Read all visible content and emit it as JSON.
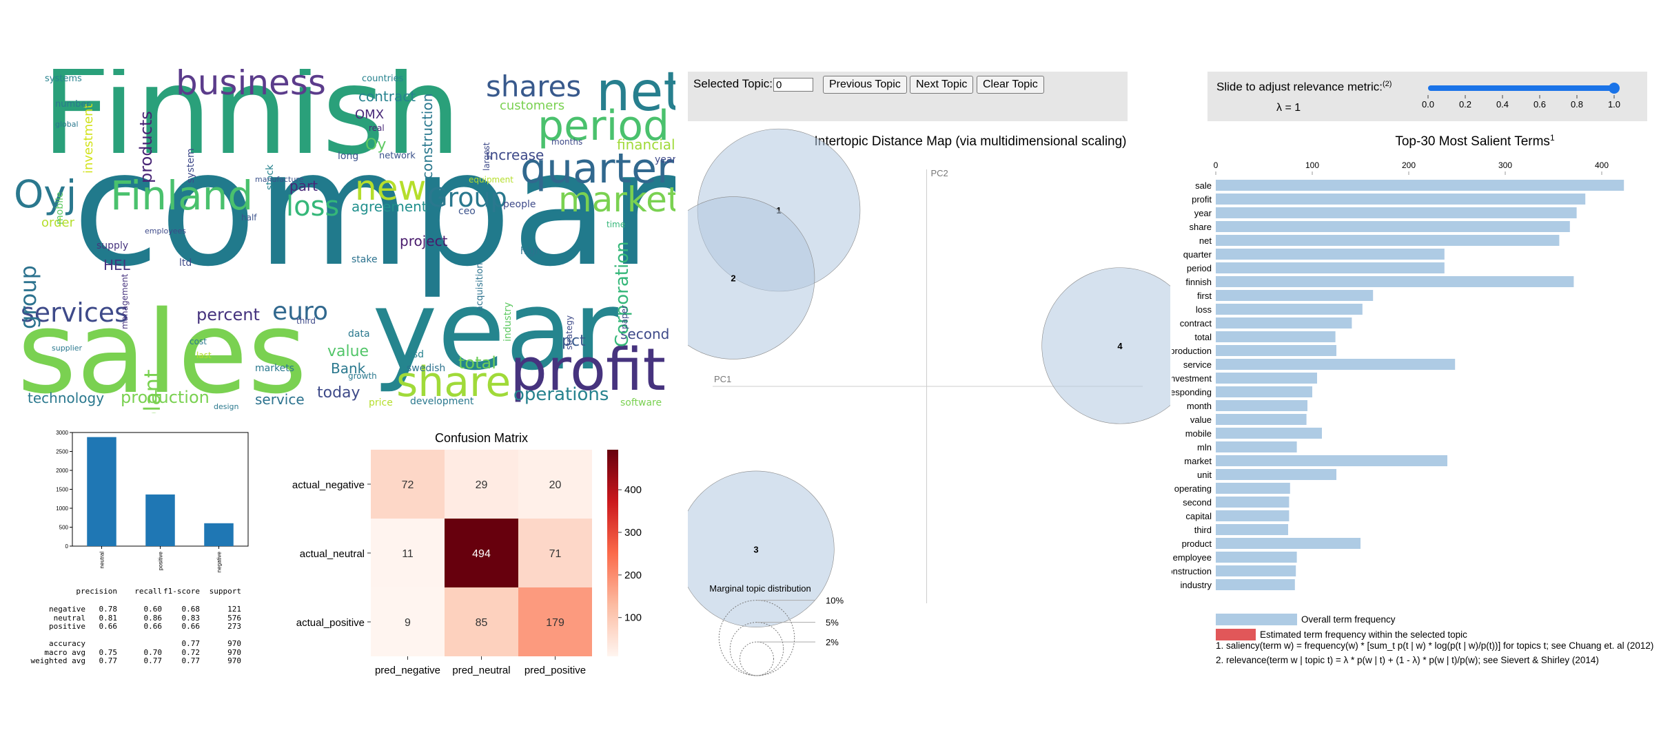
{
  "wordcloud": {
    "words": [
      {
        "text": "company",
        "x": 85,
        "y": 90,
        "size": 230,
        "color": "#217a8c",
        "rot": 0
      },
      {
        "text": "Finnish",
        "x": 40,
        "y": -25,
        "size": 175,
        "color": "#2aa07a",
        "rot": 0
      },
      {
        "text": "sales",
        "x": 5,
        "y": 330,
        "size": 165,
        "color": "#7ad151",
        "rot": 0
      },
      {
        "text": "year",
        "x": 520,
        "y": 300,
        "size": 160,
        "color": "#25858e",
        "rot": 0
      },
      {
        "text": "profit",
        "x": 720,
        "y": 395,
        "size": 85,
        "color": "#46337e",
        "rot": 0
      },
      {
        "text": "net",
        "x": 845,
        "y": -5,
        "size": 78,
        "color": "#277f8e",
        "rot": 0
      },
      {
        "text": "period",
        "x": 760,
        "y": 53,
        "size": 60,
        "color": "#4ac16d",
        "rot": 0
      },
      {
        "text": "quarter",
        "x": 735,
        "y": 115,
        "size": 60,
        "color": "#31688e",
        "rot": 0
      },
      {
        "text": "market",
        "x": 790,
        "y": 165,
        "size": 50,
        "color": "#7ad151",
        "rot": 0
      },
      {
        "text": "business",
        "x": 235,
        "y": -5,
        "size": 50,
        "color": "#5b3c8b",
        "rot": 0
      },
      {
        "text": "shares",
        "x": 685,
        "y": 5,
        "size": 42,
        "color": "#38598c",
        "rot": 0
      },
      {
        "text": "Finland",
        "x": 140,
        "y": 155,
        "size": 58,
        "color": "#4ac16d",
        "rot": 0
      },
      {
        "text": "Oyj",
        "x": 0,
        "y": 155,
        "size": 55,
        "color": "#2a788e",
        "rot": 0
      },
      {
        "text": "new",
        "x": 495,
        "y": 148,
        "size": 50,
        "color": "#b5de2b",
        "rot": 0
      },
      {
        "text": "Group",
        "x": 600,
        "y": 168,
        "size": 38,
        "color": "#2a788e",
        "rot": 0
      },
      {
        "text": "loss",
        "x": 395,
        "y": 180,
        "size": 40,
        "color": "#35b779",
        "rot": 0
      },
      {
        "text": "share",
        "x": 555,
        "y": 425,
        "size": 60,
        "color": "#a0da39",
        "rot": 0
      },
      {
        "text": "services",
        "x": 10,
        "y": 335,
        "size": 38,
        "color": "#3e4a89",
        "rot": 0
      },
      {
        "text": "euro",
        "x": 375,
        "y": 335,
        "size": 36,
        "color": "#31688e",
        "rot": 0
      },
      {
        "text": "percent",
        "x": 265,
        "y": 345,
        "size": 24,
        "color": "#46337e",
        "rot": 0
      },
      {
        "text": "production",
        "x": 155,
        "y": 465,
        "size": 24,
        "color": "#7ad151",
        "rot": 0
      },
      {
        "text": "technology",
        "x": 20,
        "y": 468,
        "size": 20,
        "color": "#2a788e",
        "rot": 0
      },
      {
        "text": "operations",
        "x": 725,
        "y": 460,
        "size": 26,
        "color": "#26828e",
        "rot": 0
      },
      {
        "text": "today",
        "x": 440,
        "y": 460,
        "size": 22,
        "color": "#3e4a89",
        "rot": 0
      },
      {
        "text": "service",
        "x": 350,
        "y": 470,
        "size": 20,
        "color": "#2c728e",
        "rot": 0
      },
      {
        "text": "total",
        "x": 645,
        "y": 415,
        "size": 24,
        "color": "#6ece58",
        "rot": 0
      },
      {
        "text": "value",
        "x": 455,
        "y": 400,
        "size": 22,
        "color": "#52c569",
        "rot": 0
      },
      {
        "text": "Bank",
        "x": 460,
        "y": 425,
        "size": 20,
        "color": "#2a788e",
        "rot": 0
      },
      {
        "text": "second",
        "x": 880,
        "y": 375,
        "size": 20,
        "color": "#3e4a89",
        "rot": 0
      },
      {
        "text": "pct",
        "x": 795,
        "y": 385,
        "size": 22,
        "color": "#38598c",
        "rot": 0
      },
      {
        "text": "agreement",
        "x": 490,
        "y": 190,
        "size": 20,
        "color": "#21908d",
        "rot": 0
      },
      {
        "text": "contract",
        "x": 500,
        "y": 30,
        "size": 20,
        "color": "#26828e",
        "rot": 0
      },
      {
        "text": "increase",
        "x": 685,
        "y": 115,
        "size": 20,
        "color": "#3e4a89",
        "rot": 0
      },
      {
        "text": "financial",
        "x": 875,
        "y": 100,
        "size": 20,
        "color": "#a0da39",
        "rot": 0
      },
      {
        "text": "customers",
        "x": 705,
        "y": 45,
        "size": 18,
        "color": "#7ad151",
        "rot": 0
      },
      {
        "text": "part",
        "x": 400,
        "y": 160,
        "size": 20,
        "color": "#482878",
        "rot": 0
      },
      {
        "text": "project",
        "x": 560,
        "y": 240,
        "size": 20,
        "color": "#481a6c",
        "rot": 0
      },
      {
        "text": "group",
        "x": 5,
        "y": 250,
        "size": 32,
        "color": "#2c728e",
        "rot": -90
      },
      {
        "text": "solutions",
        "x": -40,
        "y": 260,
        "size": 18,
        "color": "#3b528b",
        "rot": -90
      },
      {
        "text": "Corporation",
        "x": 870,
        "y": 300,
        "size": 26,
        "color": "#35b779",
        "rot": -90
      },
      {
        "text": "plant",
        "x": 185,
        "y": 390,
        "size": 32,
        "color": "#7ad151",
        "rot": -90
      },
      {
        "text": "products",
        "x": 180,
        "y": 70,
        "size": 24,
        "color": "#482475",
        "rot": -90
      },
      {
        "text": "construction",
        "x": 590,
        "y": 80,
        "size": 20,
        "color": "#2a788e",
        "rot": -90
      },
      {
        "text": "investment",
        "x": 100,
        "y": 80,
        "size": 18,
        "color": "#d2e21b",
        "rot": -90
      },
      {
        "text": "companies",
        "x": -20,
        "y": 80,
        "size": 16,
        "color": "#fde725",
        "rot": -90
      },
      {
        "text": "HEL",
        "x": 130,
        "y": 275,
        "size": 20,
        "color": "#46337e",
        "rot": 0
      },
      {
        "text": "order",
        "x": 40,
        "y": 215,
        "size": 18,
        "color": "#b5de2b",
        "rot": 0
      },
      {
        "text": "Oy",
        "x": 510,
        "y": 100,
        "size": 22,
        "color": "#5ec962",
        "rot": 0
      },
      {
        "text": "OMX",
        "x": 495,
        "y": 58,
        "size": 18,
        "color": "#482878",
        "rot": 0
      },
      {
        "text": "long",
        "x": 470,
        "y": 120,
        "size": 14,
        "color": "#3b528b",
        "rot": 0
      },
      {
        "text": "network",
        "x": 530,
        "y": 120,
        "size": 13,
        "color": "#3b528b",
        "rot": 0
      },
      {
        "text": "stake",
        "x": 490,
        "y": 270,
        "size": 14,
        "color": "#2c728e",
        "rot": 0
      },
      {
        "text": "high",
        "x": 735,
        "y": 258,
        "size": 14,
        "color": "#2c728e",
        "rot": 0
      },
      {
        "text": "acquisition",
        "x": 670,
        "y": 300,
        "size": 13,
        "color": "#2c728e",
        "rot": -90
      },
      {
        "text": "industry",
        "x": 710,
        "y": 340,
        "size": 14,
        "color": "#5ec962",
        "rot": -90
      },
      {
        "text": "markets",
        "x": 350,
        "y": 428,
        "size": 14,
        "color": "#2a788e",
        "rot": 0
      },
      {
        "text": "development",
        "x": 575,
        "y": 476,
        "size": 14,
        "color": "#2a788e",
        "rot": 0
      },
      {
        "text": "software",
        "x": 880,
        "y": 478,
        "size": 14,
        "color": "#7ad151",
        "rot": 0
      },
      {
        "text": "supply",
        "x": 120,
        "y": 250,
        "size": 14,
        "color": "#46337e",
        "rot": 0
      },
      {
        "text": "usd",
        "x": 570,
        "y": 408,
        "size": 14,
        "color": "#26828e",
        "rot": 0
      },
      {
        "text": "swedish",
        "x": 570,
        "y": 428,
        "size": 14,
        "color": "#2c728e",
        "rot": 0
      },
      {
        "text": "price",
        "x": 515,
        "y": 478,
        "size": 14,
        "color": "#b5de2b",
        "rot": 0
      },
      {
        "text": "data",
        "x": 485,
        "y": 378,
        "size": 14,
        "color": "#2a788e",
        "rot": 0
      },
      {
        "text": "growth",
        "x": 485,
        "y": 440,
        "size": 12,
        "color": "#2a788e",
        "rot": 0
      },
      {
        "text": "countries",
        "x": 505,
        "y": 8,
        "size": 13,
        "color": "#26828e",
        "rot": 0
      },
      {
        "text": "systems",
        "x": 45,
        "y": 8,
        "size": 13,
        "color": "#26828e",
        "rot": 0
      },
      {
        "text": "number",
        "x": 60,
        "y": 45,
        "size": 13,
        "color": "#2a788e",
        "rot": 0
      },
      {
        "text": "third",
        "x": 410,
        "y": 360,
        "size": 12,
        "color": "#3e4a89",
        "rot": 0
      },
      {
        "text": "time",
        "x": 860,
        "y": 220,
        "size": 12,
        "color": "#35b779",
        "rot": 0
      },
      {
        "text": "people",
        "x": 710,
        "y": 190,
        "size": 14,
        "color": "#3e4a89",
        "rot": 0
      },
      {
        "text": "years",
        "x": 930,
        "y": 125,
        "size": 14,
        "color": "#3e4a89",
        "rot": 0
      },
      {
        "text": "months",
        "x": 780,
        "y": 100,
        "size": 12,
        "color": "#3e4a89",
        "rot": 0
      },
      {
        "text": "ceo",
        "x": 645,
        "y": 200,
        "size": 14,
        "color": "#3b528b",
        "rot": 0
      },
      {
        "text": "half",
        "x": 330,
        "y": 210,
        "size": 12,
        "color": "#3b528b",
        "rot": 0
      },
      {
        "text": "equipment",
        "x": 660,
        "y": 155,
        "size": 12,
        "color": "#b5de2b",
        "rot": 0
      },
      {
        "text": "strategy",
        "x": 800,
        "y": 360,
        "size": 12,
        "color": "#3e4a89",
        "rot": -90
      },
      {
        "text": "largest",
        "x": 680,
        "y": 100,
        "size": 12,
        "color": "#3e4a89",
        "rot": -90
      },
      {
        "text": "mobile",
        "x": 60,
        "y": 170,
        "size": 14,
        "color": "#5ec962",
        "rot": -90
      },
      {
        "text": "system",
        "x": 250,
        "y": 110,
        "size": 14,
        "color": "#3e4a89",
        "rot": -90
      },
      {
        "text": "stock",
        "x": 365,
        "y": 120,
        "size": 14,
        "color": "#26828e",
        "rot": -90
      },
      {
        "text": "management",
        "x": 155,
        "y": 330,
        "size": 12,
        "color": "#46337e",
        "rot": -90
      },
      {
        "text": "ltd",
        "x": 240,
        "y": 275,
        "size": 14,
        "color": "#3e4a89",
        "rot": 0
      },
      {
        "text": "last",
        "x": 265,
        "y": 410,
        "size": 12,
        "color": "#b5de2b",
        "rot": 0
      },
      {
        "text": "cost",
        "x": 255,
        "y": 390,
        "size": 12,
        "color": "#2a788e",
        "rot": 0
      },
      {
        "text": "real",
        "x": 515,
        "y": 80,
        "size": 12,
        "color": "#482878",
        "rot": 0
      },
      {
        "text": "paper",
        "x": 880,
        "y": 330,
        "size": 12,
        "color": "#3e4a89",
        "rot": -90
      },
      {
        "text": "supplier",
        "x": 55,
        "y": 400,
        "size": 11,
        "color": "#2a788e",
        "rot": 0
      },
      {
        "text": "design",
        "x": 290,
        "y": 485,
        "size": 11,
        "color": "#2a788e",
        "rot": 0
      },
      {
        "text": "global",
        "x": 60,
        "y": 75,
        "size": 11,
        "color": "#2a788e",
        "rot": 0
      },
      {
        "text": "employees",
        "x": 190,
        "y": 230,
        "size": 11,
        "color": "#3e4a89",
        "rot": 0
      },
      {
        "text": "manufacture",
        "x": 350,
        "y": 155,
        "size": 11,
        "color": "#3b528b",
        "rot": 0
      }
    ]
  },
  "smallbar_chart": {
    "chart_data": {
      "type": "bar",
      "categories": [
        "neutral",
        "positive",
        "negative"
      ],
      "values": [
        2879,
        1363,
        604
      ],
      "ylim": [
        0,
        3000
      ],
      "yticks": [
        0,
        500,
        1000,
        1500,
        2000,
        2500,
        3000
      ],
      "color": "#1f77b4"
    }
  },
  "report": {
    "header": [
      "precision",
      "recall",
      "f1-score",
      "support"
    ],
    "rows": [
      {
        "label": "negative",
        "cells": [
          "0.78",
          "0.60",
          "0.68",
          "121"
        ]
      },
      {
        "label": "neutral",
        "cells": [
          "0.81",
          "0.86",
          "0.83",
          "576"
        ]
      },
      {
        "label": "positive",
        "cells": [
          "0.66",
          "0.66",
          "0.66",
          "273"
        ]
      },
      {
        "label": "",
        "cells": [
          "",
          "",
          "",
          ""
        ]
      },
      {
        "label": "accuracy",
        "cells": [
          "",
          "",
          "0.77",
          "970"
        ]
      },
      {
        "label": "macro avg",
        "cells": [
          "0.75",
          "0.70",
          "0.72",
          "970"
        ]
      },
      {
        "label": "weighted avg",
        "cells": [
          "0.77",
          "0.77",
          "0.77",
          "970"
        ]
      }
    ]
  },
  "confusion_matrix": {
    "chart_data": {
      "type": "heatmap",
      "title": "Confusion Matrix",
      "rows": [
        "actual_negative",
        "actual_neutral",
        "actual_positive"
      ],
      "cols": [
        "pred_negative",
        "pred_neutral",
        "pred_positive"
      ],
      "values": [
        [
          72,
          29,
          20
        ],
        [
          11,
          494,
          71
        ],
        [
          9,
          85,
          179
        ]
      ],
      "colorbar_ticks": [
        100,
        200,
        300,
        400
      ],
      "vmin": 9,
      "vmax": 494
    }
  },
  "topic_controls": {
    "selected_label": "Selected Topic:",
    "selected_value": "0",
    "prev_label": "Previous Topic",
    "next_label": "Next Topic",
    "clear_label": "Clear Topic"
  },
  "relevance_controls": {
    "label": "Slide to adjust relevance metric:",
    "label_sup": "(2)",
    "lambda_text": "λ = 1",
    "slider_value": 1.0,
    "ticks": [
      "0.0",
      "0.2",
      "0.4",
      "0.6",
      "0.8",
      "1.0"
    ],
    "accent_color": "#1a73e8"
  },
  "intertopic": {
    "chart_data": {
      "type": "scatter",
      "title": "Intertopic Distance Map (via multidimensional scaling)",
      "xlabel": "PC1",
      "ylabel": "PC2",
      "topics": [
        {
          "id": "1",
          "x": -0.13,
          "y": 0.26,
          "share": 0.26
        },
        {
          "id": "2",
          "x": -0.17,
          "y": 0.16,
          "share": 0.26
        },
        {
          "id": "3",
          "x": -0.15,
          "y": -0.24,
          "share": 0.24
        },
        {
          "id": "4",
          "x": 0.17,
          "y": 0.06,
          "share": 0.24
        }
      ],
      "xlim": [
        -0.21,
        0.19
      ],
      "ylim": [
        -0.32,
        0.32
      ],
      "circle_color": "#b3c9e0"
    },
    "marginal": {
      "title": "Marginal topic distribution",
      "levels": [
        {
          "label": "2%",
          "value": 0.02
        },
        {
          "label": "5%",
          "value": 0.05
        },
        {
          "label": "10%",
          "value": 0.1
        }
      ]
    }
  },
  "salient_terms": {
    "chart_data": {
      "type": "bar",
      "title": "Top-30 Most Salient Terms",
      "title_sup": "1",
      "xticks": [
        0,
        100,
        200,
        300,
        400
      ],
      "xlim": [
        0,
        440
      ],
      "terms": [
        "sale",
        "profit",
        "year",
        "share",
        "net",
        "quarter",
        "period",
        "finnish",
        "first",
        "loss",
        "contract",
        "total",
        "production",
        "service",
        "investment",
        "corresponding",
        "month",
        "value",
        "mobile",
        "mln",
        "market",
        "unit",
        "operating",
        "second",
        "capital",
        "third",
        "product",
        "employee",
        "construction",
        "industry"
      ],
      "values": [
        423,
        383,
        374,
        367,
        356,
        237,
        237,
        371,
        163,
        152,
        141,
        124,
        125,
        248,
        105,
        100,
        95,
        94,
        110,
        84,
        240,
        125,
        77,
        76,
        76,
        75,
        150,
        84,
        83,
        82
      ],
      "bar_color": "#aecbe4"
    },
    "legend": {
      "overall": "Overall term frequency",
      "estimated": "Estimated term frequency within the selected topic",
      "overall_color": "#aecbe4",
      "estimated_color": "#e15759"
    }
  },
  "footnotes": {
    "n1": "1. saliency(term w) = frequency(w) * [sum_t p(t | w) * log(p(t | w)/p(t))] for topics t; see Chuang et. al (2012)",
    "n2": "2. relevance(term w | topic t) = λ * p(w | t) + (1 - λ) * p(w | t)/p(w); see Sievert & Shirley (2014)"
  }
}
